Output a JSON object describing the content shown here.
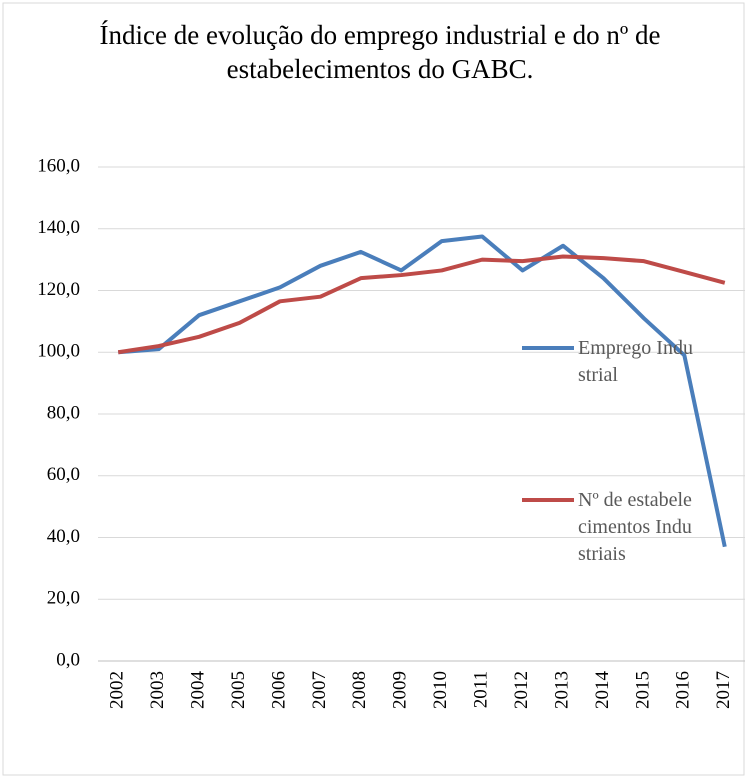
{
  "chart_data": {
    "type": "line",
    "title": "Índice de evolução do emprego industrial e do nº de estabelecimentos do GABC.",
    "x": [
      "2002",
      "2003",
      "2004",
      "2005",
      "2006",
      "2007",
      "2008",
      "2009",
      "2010",
      "2011",
      "2012",
      "2013",
      "2014",
      "2015",
      "2016",
      "2017"
    ],
    "series": [
      {
        "name": "Emprego Industrial",
        "color": "#4a7ebb",
        "values": [
          100,
          101,
          112,
          116.5,
          121,
          128,
          132.5,
          126.5,
          136,
          137.5,
          126.5,
          134.5,
          124,
          111,
          99,
          37
        ]
      },
      {
        "name": "Nº de estabelecimentos Industriais",
        "color": "#be4b48",
        "values": [
          100,
          102,
          105,
          109.5,
          116.5,
          118,
          124,
          125,
          126.5,
          130,
          129.5,
          131,
          130.5,
          129.5,
          126,
          122.5
        ]
      }
    ],
    "ylim": [
      0,
      160
    ],
    "yticks": [
      {
        "value": 0,
        "label": "0,0"
      },
      {
        "value": 20,
        "label": "20,0"
      },
      {
        "value": 40,
        "label": "40,0"
      },
      {
        "value": 60,
        "label": "60,0"
      },
      {
        "value": 80,
        "label": "80,0"
      },
      {
        "value": 100,
        "label": "100,0"
      },
      {
        "value": 120,
        "label": "120,0"
      },
      {
        "value": 140,
        "label": "140,0"
      },
      {
        "value": 160,
        "label": "160,0"
      }
    ],
    "grid": true,
    "legend": "right"
  }
}
